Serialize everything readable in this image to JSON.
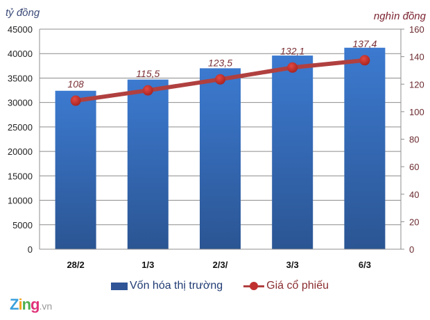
{
  "chart_data": {
    "type": "bar+line",
    "title": "",
    "categories": [
      "28/2",
      "1/3",
      "2/3/",
      "3/3",
      "6/3"
    ],
    "series": [
      {
        "name": "Vốn hóa thị trường",
        "type": "bar",
        "axis": "left",
        "color": "#3a6fbf",
        "values": [
          32400,
          34700,
          37000,
          39600,
          41200
        ]
      },
      {
        "name": "Giá cổ phiếu",
        "type": "line",
        "axis": "right",
        "color": "#b0403f",
        "values": [
          108,
          115.5,
          123.5,
          132.1,
          137.4
        ],
        "labels": [
          "108",
          "115,5",
          "123,5",
          "132,1",
          "137,4"
        ]
      }
    ],
    "ylabel_left": "tỷ đồng",
    "ylabel_right": "nghìn đồng",
    "ylim_left": [
      0,
      45000
    ],
    "ylim_right": [
      0,
      160
    ],
    "yticks_left": [
      "0",
      "5000",
      "10000",
      "15000",
      "20000",
      "25000",
      "30000",
      "35000",
      "40000",
      "45000"
    ],
    "yticks_right": [
      "0",
      "20",
      "40",
      "60",
      "80",
      "100",
      "120",
      "140",
      "160"
    ],
    "grid": true,
    "legend_position": "bottom"
  },
  "units": {
    "left": "tỷ đồng",
    "right": "nghìn đồng"
  },
  "legend": {
    "bar_label": "Vốn hóa thị trường",
    "line_label": "Giá cổ phiếu"
  },
  "watermark": {
    "brand": [
      "Z",
      "i",
      "n",
      "g"
    ],
    "suffix": ".vn"
  }
}
